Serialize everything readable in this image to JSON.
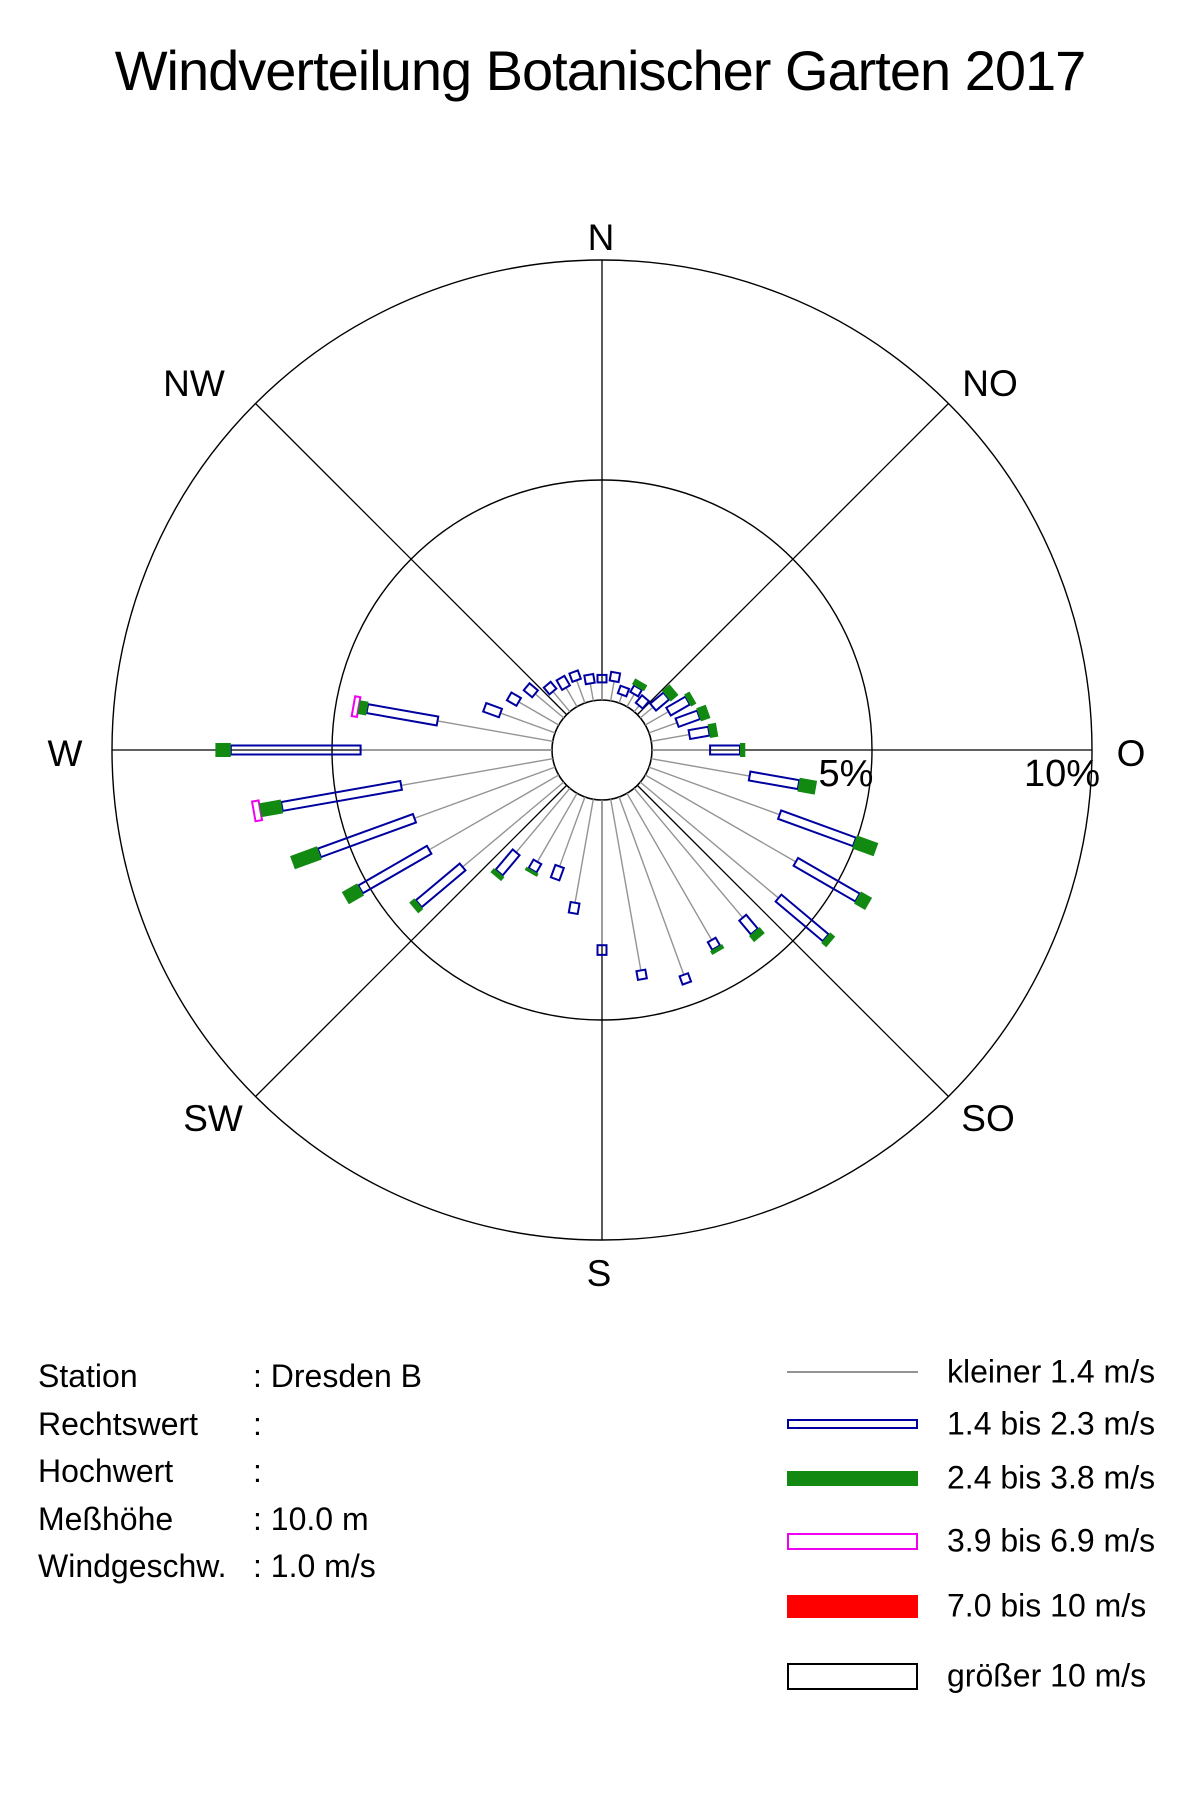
{
  "title": "Windverteilung Botanischer Garten 2017",
  "station_info": {
    "rows": [
      {
        "label": "Station",
        "value": ": Dresden B"
      },
      {
        "label": "Rechtswert",
        "value": ":"
      },
      {
        "label": "Hochwert",
        "value": ":"
      },
      {
        "label": "Meßhöhe",
        "value": ": 10.0 m"
      },
      {
        "label": "Windgeschw.",
        "value": ": 1.0 m/s"
      }
    ]
  },
  "legend": {
    "entries": [
      {
        "label": "kleiner 1.4 m/s",
        "swatch": "line",
        "color": "#949494",
        "height": 2
      },
      {
        "label": "1.4 bis 2.3 m/s",
        "swatch": "outline",
        "color": "#0000a0",
        "height": 10
      },
      {
        "label": "2.4 bis 3.8 m/s",
        "swatch": "fill",
        "color": "#128a12",
        "height": 15
      },
      {
        "label": "3.9 bis 6.9 m/s",
        "swatch": "outline",
        "color": "#f000f0",
        "height": 17
      },
      {
        "label": "7.0 bis 10 m/s",
        "swatch": "fill",
        "color": "#ff0000",
        "height": 23
      },
      {
        "label": "größer 10 m/s",
        "swatch": "outline",
        "color": "#000000",
        "height": 27
      }
    ]
  },
  "chart_data": {
    "type": "windrose-stacked-bar",
    "title": "Windverteilung Botanischer Garten 2017",
    "units": "percent frequency per 10° direction sector",
    "rings_pct": [
      5,
      10
    ],
    "ring_labels": [
      "5%",
      "10%"
    ],
    "compass_labels": [
      "N",
      "NO",
      "O",
      "SO",
      "S",
      "SW",
      "W",
      "NW"
    ],
    "speed_class_labels": [
      "kleiner 1.4 m/s",
      "1.4 bis 2.3 m/s",
      "2.4 bis 3.8 m/s",
      "3.9 bis 6.9 m/s",
      "7.0 bis 10 m/s",
      "größer 10 m/s"
    ],
    "speed_class_colors": [
      "#949494",
      "#0000a0",
      "#128a12",
      "#f000f0",
      "#ff0000",
      "#000000"
    ],
    "bars_note": "cum_pct = cumulative radial extent (%) where each successive speed class ends; class1 drawn as thin line, class2 navy outline, class3 green fill, class4 magenta outline",
    "bars": [
      {
        "dir_deg": 0,
        "cum_pct": [
          0.4,
          0.57
        ]
      },
      {
        "dir_deg": 10,
        "cum_pct": [
          0.45,
          0.65
        ]
      },
      {
        "dir_deg": 20,
        "cum_pct": [
          0.2,
          0.38
        ]
      },
      {
        "dir_deg": 30,
        "cum_pct": [
          0.33,
          0.5,
          0.65
        ]
      },
      {
        "dir_deg": 40,
        "cum_pct": [
          0.18,
          0.4
        ]
      },
      {
        "dir_deg": 50,
        "cum_pct": [
          0.38,
          0.77,
          1.0
        ]
      },
      {
        "dir_deg": 60,
        "cum_pct": [
          0.61,
          1.11,
          1.25
        ]
      },
      {
        "dir_deg": 70,
        "cum_pct": [
          0.68,
          1.2,
          1.43
        ]
      },
      {
        "dir_deg": 80,
        "cum_pct": [
          0.88,
          1.33,
          1.52
        ]
      },
      {
        "dir_deg": 90,
        "cum_pct": [
          1.32,
          2.0,
          2.12
        ]
      },
      {
        "dir_deg": 100,
        "cum_pct": [
          2.27,
          3.4,
          3.8
        ]
      },
      {
        "dir_deg": 110,
        "cum_pct": [
          3.16,
          4.97,
          5.49
        ]
      },
      {
        "dir_deg": 120,
        "cum_pct": [
          3.95,
          5.57,
          5.86
        ]
      },
      {
        "dir_deg": 130,
        "cum_pct": [
          4.1,
          5.5,
          5.65
        ]
      },
      {
        "dir_deg": 140,
        "cum_pct": [
          3.84,
          4.25,
          4.43
        ]
      },
      {
        "dir_deg": 150,
        "cum_pct": [
          3.85,
          4.05,
          4.15
        ]
      },
      {
        "dir_deg": 160,
        "cum_pct": [
          4.3,
          4.5
        ]
      },
      {
        "dir_deg": 170,
        "cum_pct": [
          3.95,
          4.15
        ]
      },
      {
        "dir_deg": 180,
        "cum_pct": [
          3.3,
          3.52
        ]
      },
      {
        "dir_deg": 190,
        "cum_pct": [
          2.39,
          2.63
        ]
      },
      {
        "dir_deg": 200,
        "cum_pct": [
          1.68,
          1.98
        ]
      },
      {
        "dir_deg": 210,
        "cum_pct": [
          1.8,
          2.02,
          2.1
        ]
      },
      {
        "dir_deg": 220,
        "cum_pct": [
          1.9,
          2.5,
          2.62
        ]
      },
      {
        "dir_deg": 230,
        "cum_pct": [
          3.0,
          4.3,
          4.45
        ]
      },
      {
        "dir_deg": 240,
        "cum_pct": [
          3.4,
          5.2,
          5.6
        ]
      },
      {
        "dir_deg": 250,
        "cum_pct": [
          3.4,
          5.7,
          6.35
        ]
      },
      {
        "dir_deg": 260,
        "cum_pct": [
          3.5,
          6.25,
          6.75,
          6.9
        ]
      },
      {
        "dir_deg": 270,
        "cum_pct": [
          4.35,
          7.3,
          7.65
        ]
      },
      {
        "dir_deg": 280,
        "cum_pct": [
          2.66,
          4.28,
          4.48,
          4.6
        ]
      },
      {
        "dir_deg": 290,
        "cum_pct": [
          1.32,
          1.7
        ]
      },
      {
        "dir_deg": 300,
        "cum_pct": [
          1.05,
          1.3
        ]
      },
      {
        "dir_deg": 310,
        "cum_pct": [
          0.85,
          1.1
        ]
      },
      {
        "dir_deg": 320,
        "cum_pct": [
          0.6,
          0.8
        ]
      },
      {
        "dir_deg": 330,
        "cum_pct": [
          0.5,
          0.75
        ]
      },
      {
        "dir_deg": 340,
        "cum_pct": [
          0.55,
          0.75
        ]
      },
      {
        "dir_deg": 350,
        "cum_pct": [
          0.4,
          0.6
        ]
      }
    ]
  }
}
